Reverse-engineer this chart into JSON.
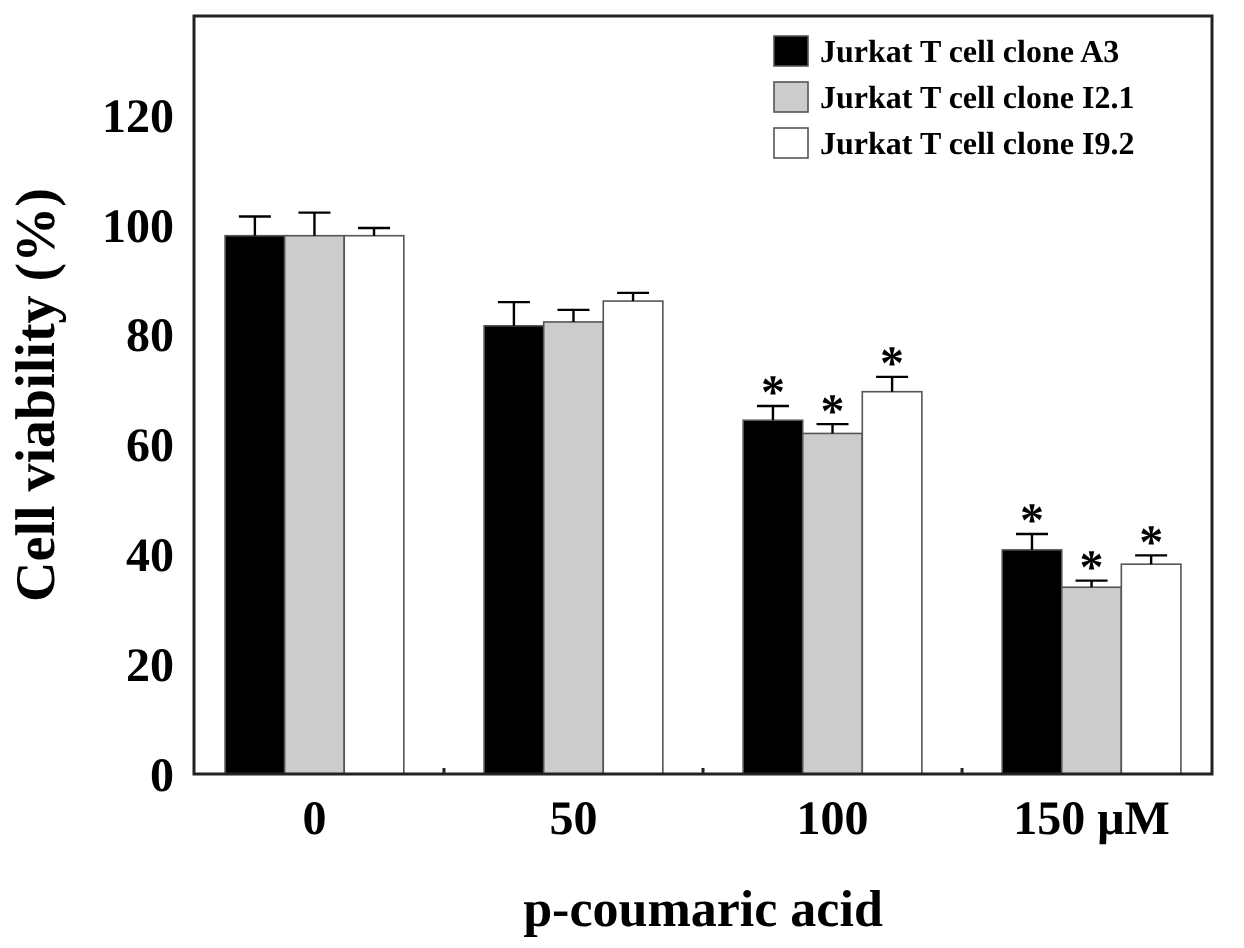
{
  "chart_data": {
    "type": "bar",
    "categories": [
      "0",
      "50",
      "100",
      "150 μM"
    ],
    "xlabel": "p-coumaric acid",
    "ylabel": "Cell viability (%)",
    "ylim": [
      0,
      138
    ],
    "yticks": [
      0,
      20,
      40,
      60,
      80,
      100,
      120
    ],
    "grid": false,
    "legend": "top right",
    "series": [
      {
        "name": "Jurkat T cell clone A3",
        "color": "#000000",
        "values": [
          98,
          81.6,
          64.4,
          40.8
        ],
        "value_labels": [
          null,
          null,
          "*",
          "*"
        ],
        "errors": [
          [
            98,
            101.5
          ],
          [
            81.6,
            85.9
          ],
          [
            64.4,
            67
          ],
          [
            40.8,
            43.7
          ]
        ]
      },
      {
        "name": "Jurkat T cell clone I2.1",
        "color": "#cccccc",
        "values": [
          98,
          82.3,
          62,
          34
        ],
        "value_labels": [
          null,
          null,
          "*",
          "*"
        ],
        "errors": [
          [
            98,
            102.2
          ],
          [
            82.3,
            84.5
          ],
          [
            62,
            63.7
          ],
          [
            34,
            35.2
          ]
        ]
      },
      {
        "name": "Jurkat T cell clone I9.2",
        "color": "#ffffff",
        "values": [
          98,
          86.1,
          69.6,
          38.2
        ],
        "value_labels": [
          null,
          null,
          "*",
          "*"
        ],
        "errors": [
          [
            98,
            99.4
          ],
          [
            86.1,
            87.6
          ],
          [
            69.6,
            72.3
          ],
          [
            38.2,
            39.8
          ]
        ]
      }
    ]
  }
}
